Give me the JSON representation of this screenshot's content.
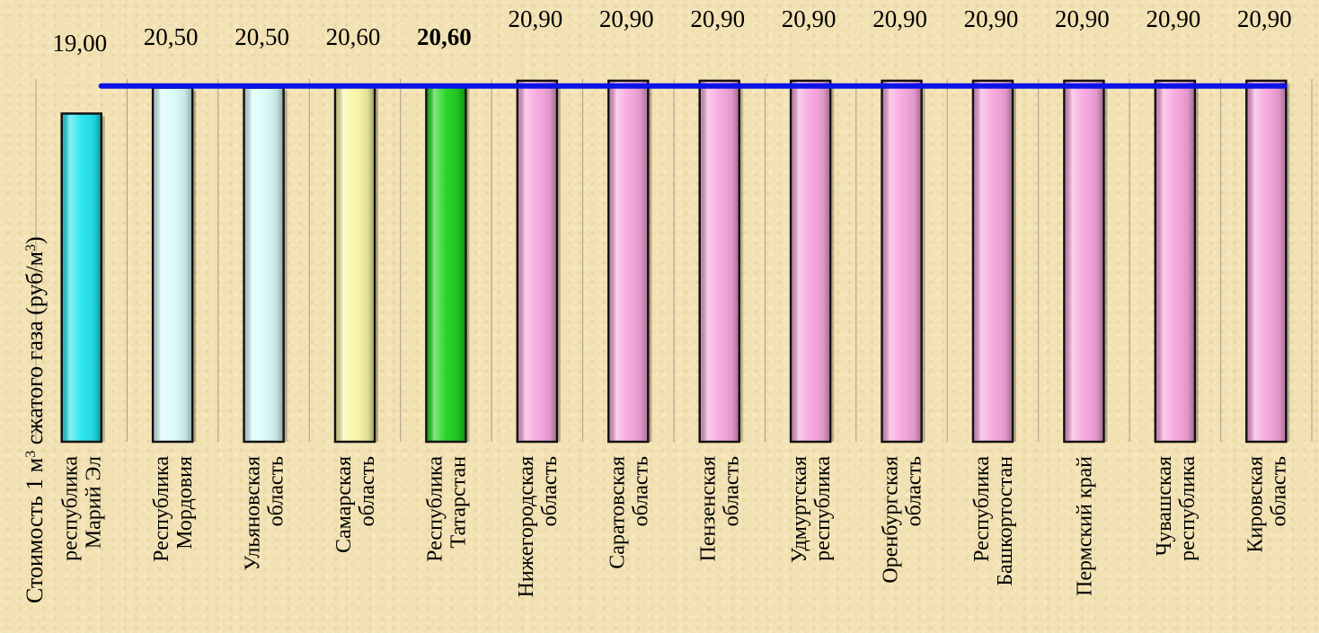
{
  "chart_data": {
    "type": "bar",
    "ylabel": "Стоимость 1 м³ сжатого газа (руб/м³)",
    "ylabel_parts": {
      "before": "Стоимость  1 м",
      "sup1": "3",
      "middle": " сжатого газа  (руб/м",
      "sup2": "3",
      "after": ")"
    },
    "categories": [
      [
        "республика",
        "Марий Эл"
      ],
      [
        "Республика",
        "Мордовия"
      ],
      [
        "Ульяновская",
        "область"
      ],
      [
        "Самарская",
        "область"
      ],
      [
        "Республика",
        "Татарстан"
      ],
      [
        "Нижегородская",
        "область"
      ],
      [
        "Саратовская",
        "область"
      ],
      [
        "Пензенская",
        "область"
      ],
      [
        "Удмуртская",
        "республика"
      ],
      [
        "Оренбургская",
        "область"
      ],
      [
        "Республика",
        "Башкортостан"
      ],
      [
        "Пермский край"
      ],
      [
        "Чувашская",
        "республика"
      ],
      [
        "Кировская",
        "область"
      ]
    ],
    "values": [
      19.0,
      20.5,
      20.5,
      20.6,
      20.6,
      20.9,
      20.9,
      20.9,
      20.9,
      20.9,
      20.9,
      20.9,
      20.9,
      20.9
    ],
    "value_labels": [
      "19,00",
      "20,50",
      "20,50",
      "20,60",
      "20,60",
      "20,90",
      "20,90",
      "20,90",
      "20,90",
      "20,90",
      "20,90",
      "20,90",
      "20,90",
      "20,90"
    ],
    "highlight_index": 4,
    "bar_colors": [
      "#22e6ef",
      "#d9fbfb",
      "#d9fbfb",
      "#f8f6a3",
      "#1ed21e",
      "#f7a5dc",
      "#f7a5dc",
      "#f7a5dc",
      "#f7a5dc",
      "#f7a5dc",
      "#f7a5dc",
      "#f7a5dc",
      "#f7a5dc",
      "#f7a5dc"
    ],
    "reference_line": {
      "value": 20.6,
      "color": "#0a14e6"
    },
    "ylim": [
      0,
      21
    ],
    "grid": "vertical",
    "legend": "none"
  }
}
